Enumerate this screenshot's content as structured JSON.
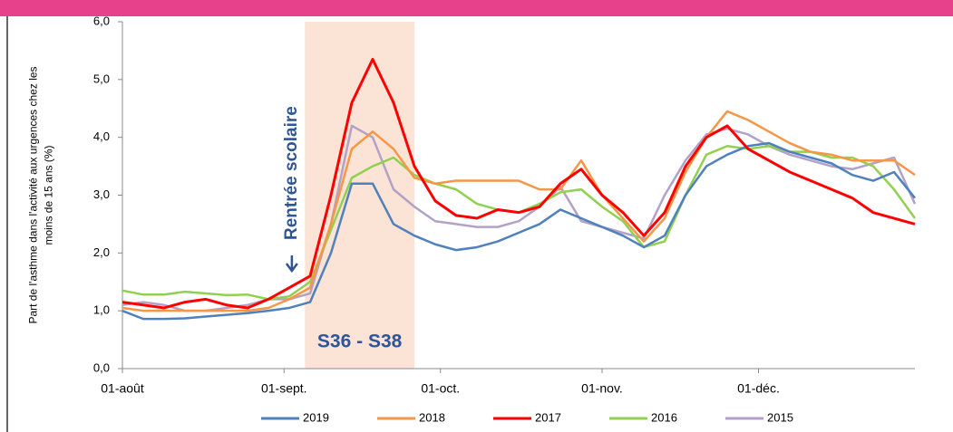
{
  "chart_data": {
    "type": "line",
    "ylabel": [
      "Part de l'asthme dans l'activité  aux urgences chez les",
      "moins de 15 ans (%)"
    ],
    "x": [
      0,
      4,
      8,
      12,
      16,
      20,
      24,
      28,
      32,
      36,
      40,
      44,
      48,
      52,
      56,
      60,
      64,
      68,
      72,
      76,
      80,
      84,
      88,
      92,
      96,
      100,
      104,
      108,
      112,
      116,
      120,
      124,
      128,
      132,
      136,
      140,
      144,
      148,
      152
    ],
    "xlim": [
      0,
      152
    ],
    "xticks": [
      {
        "value": 0,
        "label": "01-août"
      },
      {
        "value": 31,
        "label": "01-sept."
      },
      {
        "value": 61,
        "label": "01-oct."
      },
      {
        "value": 92,
        "label": "01-nov."
      },
      {
        "value": 122,
        "label": "01-déc."
      }
    ],
    "ylim": [
      0,
      6
    ],
    "yticks": [
      {
        "value": 0,
        "label": "0,0"
      },
      {
        "value": 1,
        "label": "1,0"
      },
      {
        "value": 2,
        "label": "2,0"
      },
      {
        "value": 3,
        "label": "3,0"
      },
      {
        "value": 4,
        "label": "4,0"
      },
      {
        "value": 5,
        "label": "5,0"
      },
      {
        "value": 6,
        "label": "6,0"
      }
    ],
    "shade": {
      "x": [
        35,
        56
      ],
      "label": "S36 - S38",
      "color": "#fbe3d6"
    },
    "annotation": {
      "x": 32.5,
      "text": "Rentrée scolaire"
    },
    "series": [
      {
        "name": "2019",
        "color": "#4f81bd",
        "values": [
          1.0,
          0.86,
          0.86,
          0.87,
          0.9,
          0.93,
          0.96,
          1.0,
          1.05,
          1.15,
          2.0,
          3.2,
          3.2,
          2.5,
          2.3,
          2.15,
          2.05,
          2.1,
          2.2,
          2.35,
          2.5,
          2.75,
          2.6,
          2.45,
          2.3,
          2.1,
          2.3,
          3.0,
          3.5,
          3.7,
          3.85,
          3.9,
          3.75,
          3.65,
          3.55,
          3.35,
          3.25,
          3.4,
          2.95
        ]
      },
      {
        "name": "2018",
        "color": "#f79646",
        "values": [
          1.05,
          1.0,
          1.0,
          1.0,
          1.0,
          1.0,
          1.0,
          1.05,
          1.2,
          1.4,
          2.5,
          3.8,
          4.1,
          3.8,
          3.3,
          3.2,
          3.25,
          3.25,
          3.25,
          3.25,
          3.1,
          3.1,
          3.6,
          3.0,
          2.6,
          2.2,
          2.6,
          3.4,
          4.0,
          4.45,
          4.3,
          4.1,
          3.9,
          3.75,
          3.7,
          3.6,
          3.6,
          3.6,
          3.35
        ]
      },
      {
        "name": "2017",
        "color": "#ff0000",
        "values": [
          1.15,
          1.1,
          1.05,
          1.15,
          1.2,
          1.1,
          1.05,
          1.2,
          1.4,
          1.6,
          3.0,
          4.6,
          5.35,
          4.6,
          3.5,
          2.9,
          2.65,
          2.6,
          2.75,
          2.7,
          2.8,
          3.2,
          3.45,
          3.0,
          2.7,
          2.3,
          2.7,
          3.5,
          4.0,
          4.2,
          3.8,
          3.6,
          3.4,
          3.25,
          3.1,
          2.95,
          2.7,
          2.6,
          2.5
        ]
      },
      {
        "name": "2016",
        "color": "#92d050",
        "values": [
          1.35,
          1.28,
          1.28,
          1.33,
          1.3,
          1.27,
          1.28,
          1.2,
          1.25,
          1.5,
          2.4,
          3.3,
          3.5,
          3.65,
          3.35,
          3.2,
          3.1,
          2.85,
          2.75,
          2.7,
          2.85,
          3.05,
          3.1,
          2.8,
          2.55,
          2.1,
          2.2,
          3.0,
          3.7,
          3.85,
          3.8,
          3.85,
          3.75,
          3.75,
          3.65,
          3.65,
          3.5,
          3.1,
          2.6
        ]
      },
      {
        "name": "2015",
        "color": "#b3a2c7",
        "values": [
          1.1,
          1.15,
          1.1,
          1.0,
          1.0,
          1.05,
          1.1,
          1.2,
          1.2,
          1.3,
          2.5,
          4.2,
          4.0,
          3.1,
          2.8,
          2.55,
          2.5,
          2.45,
          2.45,
          2.55,
          2.8,
          3.15,
          2.55,
          2.45,
          2.35,
          2.25,
          3.0,
          3.6,
          4.05,
          4.15,
          4.05,
          3.85,
          3.7,
          3.6,
          3.5,
          3.45,
          3.55,
          3.65,
          2.85
        ]
      }
    ]
  }
}
